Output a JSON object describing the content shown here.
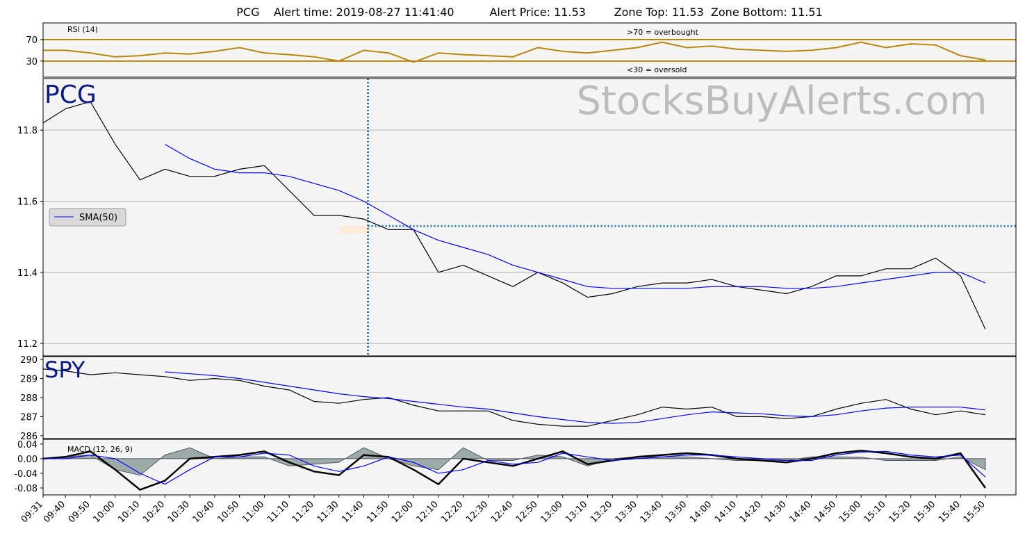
{
  "header": {
    "symbol": "PCG",
    "alert_time_label": "Alert time:",
    "alert_time": "2019-08-27 11:41:40",
    "alert_price_label": "Alert Price:",
    "alert_price": 11.53,
    "zone_top_label": "Zone Top:",
    "zone_top": 11.53,
    "zone_bottom_label": "Zone Bottom:",
    "zone_bottom": 11.51
  },
  "chart_data": [
    {
      "type": "line",
      "annotations": [
        "RSI (14)",
        ">70 = overbought",
        "<30 = oversold"
      ],
      "ylim": [
        0,
        101
      ],
      "yticks": [
        70,
        30
      ],
      "tick_line_color": "#b8860b",
      "series": [
        {
          "name": "RSI (14)",
          "color": "#b8860b",
          "values": [
            50,
            50,
            45,
            38,
            40,
            45,
            43,
            48,
            55,
            45,
            42,
            38,
            30,
            50,
            45,
            28,
            45,
            42,
            40,
            38,
            55,
            48,
            45,
            50,
            55,
            65,
            55,
            58,
            52,
            50,
            48,
            50,
            55,
            65,
            55,
            62,
            60,
            40,
            32
          ]
        }
      ]
    },
    {
      "type": "line",
      "annotations": [
        "StocksBuyAlerts.com"
      ],
      "grid": true,
      "legend": "left",
      "ylim": [
        11.165,
        11.945
      ],
      "yticks": [
        11.8,
        11.6,
        11.4,
        11.2
      ],
      "series": [
        {
          "name": "PCG",
          "color": "#000000",
          "values": [
            11.82,
            11.86,
            11.88,
            11.76,
            11.66,
            11.69,
            11.67,
            11.67,
            11.69,
            11.7,
            11.63,
            11.56,
            11.56,
            11.55,
            11.52,
            11.52,
            11.4,
            11.42,
            11.39,
            11.36,
            11.4,
            11.37,
            11.33,
            11.34,
            11.36,
            11.37,
            11.37,
            11.38,
            11.36,
            11.35,
            11.34,
            11.36,
            11.39,
            11.39,
            11.41,
            11.41,
            11.44,
            11.39,
            11.24
          ]
        },
        {
          "name": "SMA(50)",
          "color": "#0000ff",
          "values": [
            null,
            null,
            null,
            null,
            null,
            11.76,
            11.72,
            11.69,
            11.68,
            11.68,
            11.67,
            11.65,
            11.63,
            11.6,
            11.56,
            11.52,
            11.49,
            11.47,
            11.45,
            11.42,
            11.4,
            11.38,
            11.36,
            11.355,
            11.355,
            11.355,
            11.355,
            11.36,
            11.36,
            11.36,
            11.355,
            11.355,
            11.36,
            11.37,
            11.38,
            11.39,
            11.4,
            11.4,
            11.37
          ]
        }
      ]
    },
    {
      "type": "line",
      "grid": false,
      "ylim": [
        285.85,
        290.15
      ],
      "yticks": [
        290,
        289,
        288,
        287,
        286
      ],
      "series": [
        {
          "name": "SPY",
          "color": "#000000",
          "values": [
            289.5,
            289.4,
            289.2,
            289.3,
            289.2,
            289.1,
            288.9,
            289.0,
            288.9,
            288.6,
            288.4,
            287.8,
            287.7,
            287.9,
            288.0,
            287.6,
            287.3,
            287.3,
            287.3,
            286.8,
            286.6,
            286.5,
            286.5,
            286.8,
            287.1,
            287.5,
            287.4,
            287.5,
            287.0,
            287.0,
            286.9,
            287.0,
            287.4,
            287.7,
            287.9,
            287.4,
            287.1,
            287.3,
            287.1
          ]
        },
        {
          "color": "#0000ff",
          "values": [
            null,
            null,
            null,
            null,
            null,
            289.35,
            289.25,
            289.15,
            289.0,
            288.8,
            288.6,
            288.4,
            288.2,
            288.05,
            287.95,
            287.8,
            287.65,
            287.5,
            287.4,
            287.2,
            287.0,
            286.85,
            286.7,
            286.65,
            286.7,
            286.9,
            287.1,
            287.25,
            287.2,
            287.15,
            287.05,
            287.0,
            287.1,
            287.3,
            287.45,
            287.5,
            287.5,
            287.5,
            287.35
          ]
        }
      ]
    },
    {
      "type": "line",
      "annotations": [
        "MACD (12, 26, 9)"
      ],
      "ylim": [
        -0.099,
        0.053
      ],
      "yticks": [
        0.04,
        {
          "value": 0,
          "label": "0.00"
        },
        -0.04,
        -0.08
      ],
      "categories": [
        "09:31",
        "09:40",
        "09:50",
        "10:00",
        "10:10",
        "10:20",
        "10:30",
        "10:40",
        "10:50",
        "11:00",
        "11:10",
        "11:20",
        "11:30",
        "11:40",
        "11:50",
        "12:00",
        "12:10",
        "12:20",
        "12:30",
        "12:40",
        "12:50",
        "13:00",
        "13:10",
        "13:20",
        "13:30",
        "13:40",
        "13:50",
        "14:00",
        "14:10",
        "14:20",
        "14:30",
        "14:40",
        "14:50",
        "15:00",
        "15:10",
        "15:20",
        "15:30",
        "15:40",
        "15:50"
      ],
      "histogram": {
        "color": "#7f9090",
        "values": [
          0,
          0.005,
          0.01,
          -0.03,
          -0.045,
          0.01,
          0.03,
          0,
          0.005,
          0.005,
          -0.02,
          -0.015,
          -0.01,
          0.03,
          0,
          -0.02,
          -0.03,
          0.03,
          -0.005,
          -0.005,
          0.01,
          0.005,
          -0.02,
          0,
          0.005,
          0.005,
          0.005,
          0,
          -0.005,
          -0.005,
          -0.005,
          0.005,
          0.005,
          0.004,
          -0.005,
          -0.005,
          -0.005,
          0.005,
          -0.03
        ]
      },
      "series": [
        {
          "color": "#000000",
          "values": [
            0,
            0.005,
            0.02,
            -0.03,
            -0.085,
            -0.06,
            0,
            0.005,
            0.01,
            0.02,
            -0.01,
            -0.035,
            -0.045,
            0.01,
            0.005,
            -0.03,
            -0.07,
            0,
            -0.01,
            -0.02,
            0,
            0.02,
            -0.015,
            -0.005,
            0.005,
            0.01,
            0.015,
            0.01,
            0,
            -0.005,
            -0.01,
            0,
            0.015,
            0.022,
            0.015,
            0.005,
            0,
            0.015,
            -0.08
          ]
        },
        {
          "color": "#0000ff",
          "values": [
            0,
            0,
            0.01,
            0,
            -0.04,
            -0.07,
            -0.03,
            0.005,
            0.005,
            0.015,
            0.01,
            -0.02,
            -0.035,
            -0.02,
            0.005,
            -0.01,
            -0.04,
            -0.03,
            -0.005,
            -0.015,
            -0.01,
            0.015,
            0.005,
            -0.005,
            0,
            0.005,
            0.01,
            0.01,
            0.005,
            0,
            -0.005,
            -0.005,
            0.01,
            0.018,
            0.02,
            0.01,
            0.005,
            0.01,
            -0.05
          ]
        }
      ]
    }
  ]
}
